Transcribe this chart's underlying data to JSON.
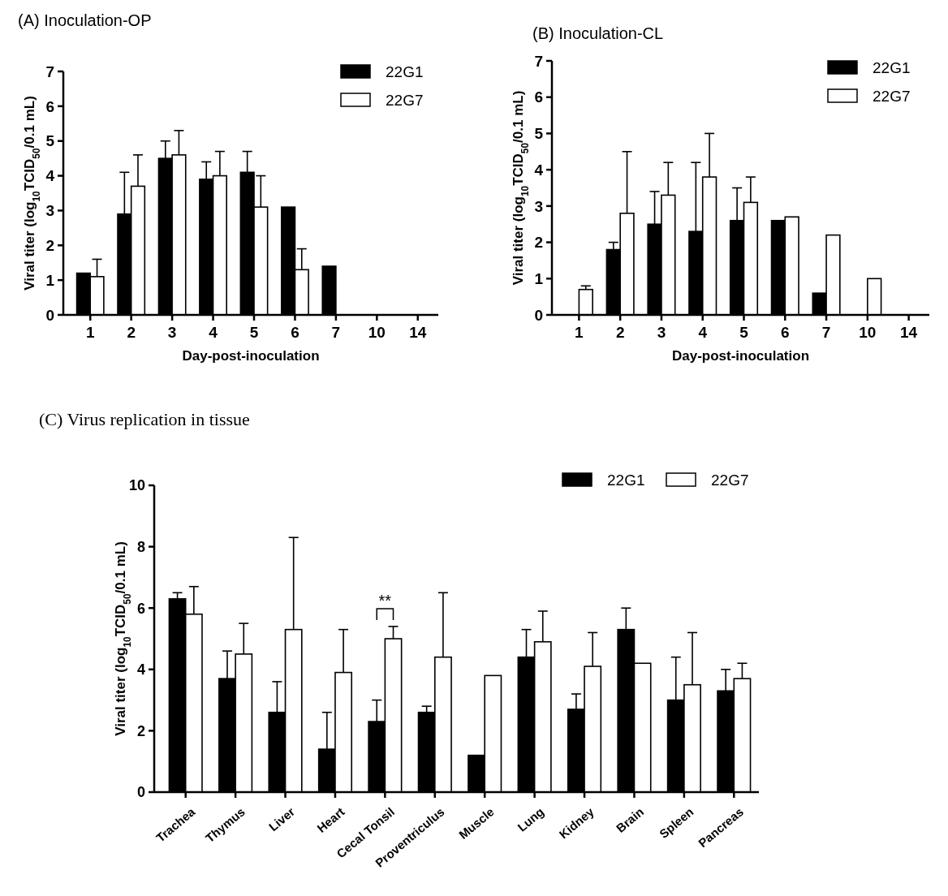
{
  "chart_data": [
    {
      "type": "bar",
      "title": "(A) Inoculation-OP",
      "xlabel": "Day-post-inoculation",
      "ylabel": "Viral titer (log$_{10}$TCID$_{50}$/0.1 mL)",
      "categories": [
        "1",
        "2",
        "3",
        "4",
        "5",
        "6",
        "7",
        "10",
        "14"
      ],
      "ylim": [
        0,
        7
      ],
      "yticks": [
        0,
        1,
        2,
        3,
        4,
        5,
        6,
        7
      ],
      "grid": false,
      "legend": "top right",
      "series": [
        {
          "name": "22G1",
          "color": "#000000",
          "values": [
            1.2,
            2.9,
            4.5,
            3.9,
            4.1,
            3.1,
            1.4,
            0,
            0
          ],
          "errors": [
            null,
            [
              2.9,
              4.1
            ],
            [
              4.5,
              5.0
            ],
            [
              3.9,
              4.4
            ],
            [
              4.1,
              4.7
            ],
            null,
            null,
            null,
            null
          ]
        },
        {
          "name": "22G7",
          "color": "#ffffff",
          "values": [
            1.1,
            3.7,
            4.6,
            4.0,
            3.1,
            1.3,
            0,
            0,
            0
          ],
          "errors": [
            [
              1.1,
              1.6
            ],
            [
              3.7,
              4.6
            ],
            [
              4.6,
              5.3
            ],
            [
              4.0,
              4.7
            ],
            [
              3.1,
              4.0
            ],
            [
              1.3,
              1.9
            ],
            null,
            null,
            null
          ]
        }
      ]
    },
    {
      "type": "bar",
      "title": "(B) Inoculation-CL",
      "xlabel": "Day-post-inoculation",
      "ylabel": "Viral titer (log$_{10}$TCID$_{50}$/0.1 mL)",
      "categories": [
        "1",
        "2",
        "3",
        "4",
        "5",
        "6",
        "7",
        "10",
        "14"
      ],
      "ylim": [
        0,
        7
      ],
      "yticks": [
        0,
        1,
        2,
        3,
        4,
        5,
        6,
        7
      ],
      "grid": false,
      "legend": "top right",
      "series": [
        {
          "name": "22G1",
          "color": "#000000",
          "values": [
            0,
            1.8,
            2.5,
            2.3,
            2.6,
            2.6,
            0.6,
            0,
            0
          ],
          "errors": [
            null,
            [
              1.8,
              2.0
            ],
            [
              2.5,
              3.4
            ],
            [
              2.3,
              4.2
            ],
            [
              2.6,
              3.5
            ],
            null,
            null,
            null,
            null
          ]
        },
        {
          "name": "22G7",
          "color": "#ffffff",
          "values": [
            0.7,
            2.8,
            3.3,
            3.8,
            3.1,
            2.7,
            2.2,
            1.0,
            0
          ],
          "errors": [
            [
              0.7,
              0.8
            ],
            [
              2.8,
              4.5
            ],
            [
              3.3,
              4.2
            ],
            [
              3.8,
              5.0
            ],
            [
              3.1,
              3.8
            ],
            null,
            null,
            null,
            null
          ]
        }
      ]
    },
    {
      "type": "bar",
      "title": "(C) Virus replication in tissue",
      "ylabel": "Viral titer (log$_{10}$TCID$_{50}$/0.1 mL)",
      "categories": [
        "Trachea",
        "Thymus",
        "Liver",
        "Heart",
        "Cecal Tonsil",
        "Proventriculus",
        "Muscle",
        "Lung",
        "Kidney",
        "Brain",
        "Spleen",
        "Pancreas"
      ],
      "ylim": [
        0,
        10
      ],
      "yticks": [
        0,
        2,
        4,
        6,
        8,
        10
      ],
      "grid": false,
      "legend": "top right",
      "annotations": [
        "**"
      ],
      "series": [
        {
          "name": "22G1",
          "color": "#000000",
          "values": [
            6.3,
            3.7,
            2.6,
            1.4,
            2.3,
            2.6,
            1.2,
            4.4,
            2.7,
            5.3,
            3.0,
            3.3
          ],
          "errors": [
            [
              6.3,
              6.5
            ],
            [
              3.7,
              4.6
            ],
            [
              2.6,
              3.6
            ],
            [
              1.4,
              2.6
            ],
            [
              2.3,
              3.0
            ],
            [
              2.6,
              2.8
            ],
            null,
            [
              4.4,
              5.3
            ],
            [
              2.7,
              3.2
            ],
            [
              5.3,
              6.0
            ],
            [
              3.0,
              4.4
            ],
            [
              3.3,
              4.0
            ]
          ]
        },
        {
          "name": "22G7",
          "color": "#ffffff",
          "values": [
            5.8,
            4.5,
            5.3,
            3.9,
            5.0,
            4.4,
            3.8,
            4.9,
            4.1,
            4.2,
            3.5,
            3.7
          ],
          "errors": [
            [
              5.8,
              6.7
            ],
            [
              4.5,
              5.5
            ],
            [
              5.3,
              8.3
            ],
            [
              3.9,
              5.3
            ],
            [
              5.0,
              5.4
            ],
            [
              4.4,
              6.5
            ],
            null,
            [
              4.9,
              5.9
            ],
            [
              4.1,
              5.2
            ],
            null,
            [
              3.5,
              5.2
            ],
            [
              3.7,
              4.2
            ]
          ]
        }
      ]
    }
  ]
}
